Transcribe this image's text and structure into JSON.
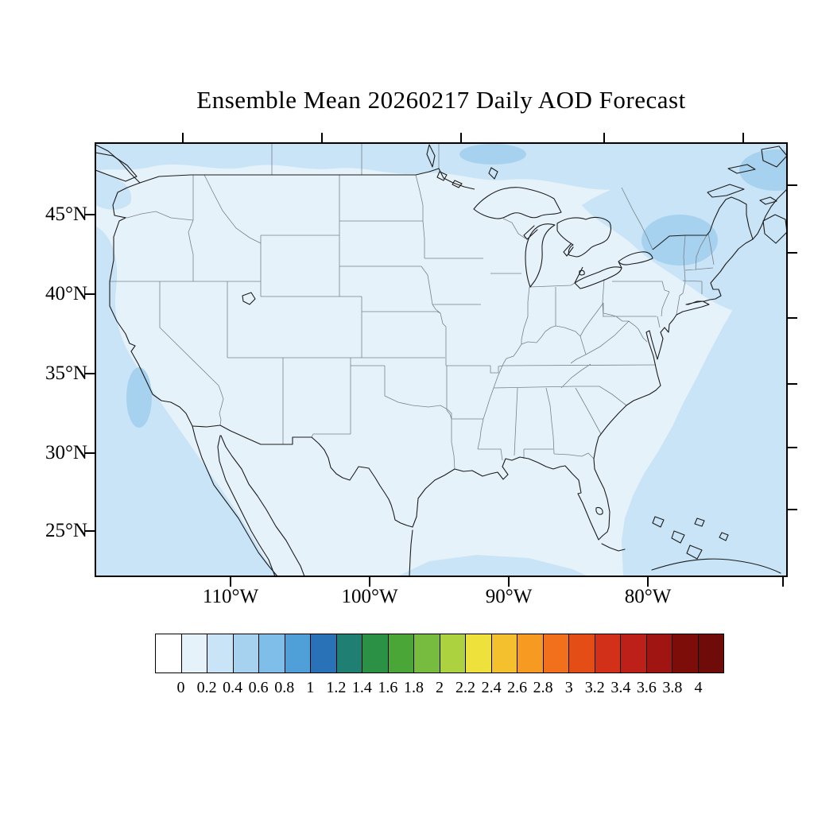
{
  "title": "Ensemble Mean 20260217 Daily AOD Forecast",
  "axes": {
    "lat_labels": [
      "45°N",
      "40°N",
      "35°N",
      "30°N",
      "25°N"
    ],
    "lon_labels": [
      "110°W",
      "100°W",
      "90°W",
      "80°W"
    ]
  },
  "colorbar": {
    "tick_labels": [
      "0",
      "0.2",
      "0.4",
      "0.6",
      "0.8",
      "1",
      "1.2",
      "1.4",
      "1.6",
      "1.8",
      "2",
      "2.2",
      "2.4",
      "2.6",
      "2.8",
      "3",
      "3.2",
      "3.4",
      "3.6",
      "3.8",
      "4"
    ],
    "colors": [
      "#FFFFFF",
      "#E6F2FA",
      "#C8E4F6",
      "#A6D2EF",
      "#7FBEE9",
      "#4F9FD9",
      "#2A72B8",
      "#1F7F72",
      "#2B9144",
      "#4AA637",
      "#77BC3E",
      "#ACD23F",
      "#EFE13C",
      "#F5C02E",
      "#F79A22",
      "#F26F1B",
      "#E44D15",
      "#D3301A",
      "#BC2018",
      "#A01511",
      "#7C0D09",
      "#6F0B08"
    ]
  },
  "chart_data": {
    "type": "heatmap",
    "title": "Ensemble Mean 20260217 Daily AOD Forecast",
    "variable": "Aerosol Optical Depth (AOD), daily ensemble mean forecast",
    "map_region": "Continental United States with surrounding Canada, Mexico, Atlantic and Pacific coastal waters",
    "x_ticks": [
      "110°W",
      "100°W",
      "90°W",
      "80°W"
    ],
    "y_ticks": [
      "45°N",
      "40°N",
      "35°N",
      "30°N",
      "25°N"
    ],
    "colorbar_levels": [
      0,
      0.2,
      0.4,
      0.6,
      0.8,
      1,
      1.2,
      1.4,
      1.6,
      1.8,
      2,
      2.2,
      2.4,
      2.6,
      2.8,
      3,
      3.2,
      3.4,
      3.6,
      3.8,
      4
    ],
    "palette": [
      "#FFFFFF",
      "#E6F2FA",
      "#C8E4F6",
      "#A6D2EF",
      "#7FBEE9",
      "#4F9FD9",
      "#2A72B8",
      "#1F7F72",
      "#2B9144",
      "#4AA637",
      "#77BC3E",
      "#ACD23F",
      "#EFE13C",
      "#F5C02E",
      "#F79A22",
      "#F26F1B",
      "#E44D15",
      "#D3301A",
      "#BC2018",
      "#A01511",
      "#7C0D09",
      "#6F0B08"
    ],
    "legend_position": "bottom",
    "grid": false,
    "values_summary": [
      {
        "region": "Most of CONUS interior land",
        "aod_range": "0.0–0.2"
      },
      {
        "region": "Pacific waters off California and Baja California",
        "aod_range": "0.2–0.4"
      },
      {
        "region": "Atlantic waters along the East Coast and around Florida/Bahamas",
        "aod_range": "0.2–0.4"
      },
      {
        "region": "Southern Canada band along the northern map edge",
        "aod_range": "0.2–0.4"
      },
      {
        "region": "Northeast US / St. Lawrence and Gulf of Maine area",
        "aod_range": "0.4–0.6"
      }
    ]
  }
}
